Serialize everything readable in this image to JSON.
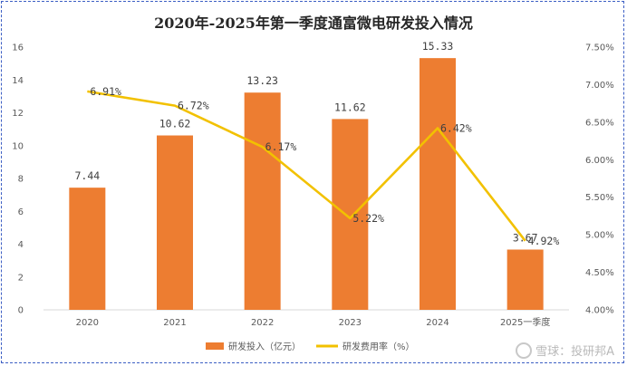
{
  "chart_data": {
    "type": "bar",
    "title": "2020年-2025年第一季度通富微电研发投入情况",
    "categories": [
      "2020",
      "2021",
      "2022",
      "2023",
      "2024",
      "2025一季度"
    ],
    "series": [
      {
        "name": "研发投入（亿元）",
        "type": "bar",
        "axis": "left",
        "color": "#ed7d31",
        "values": [
          7.44,
          10.62,
          13.23,
          11.62,
          15.33,
          3.67
        ],
        "labels": [
          "7.44",
          "10.62",
          "13.23",
          "11.62",
          "15.33",
          "3.67"
        ]
      },
      {
        "name": "研发费用率（%）",
        "type": "line",
        "axis": "right",
        "color": "#f2c100",
        "values": [
          6.91,
          6.72,
          6.17,
          5.22,
          6.42,
          4.92
        ],
        "labels": [
          "6.91%",
          "6.72%",
          "6.17%",
          "5.22%",
          "6.42%",
          "4.92%"
        ]
      }
    ],
    "y_left": {
      "ylim": [
        0,
        16
      ],
      "ticks": [
        "0",
        "2",
        "4",
        "6",
        "8",
        "10",
        "12",
        "14",
        "16"
      ]
    },
    "y_right": {
      "ylim": [
        4.0,
        7.5
      ],
      "ticks": [
        "4.00%",
        "4.50%",
        "5.00%",
        "5.50%",
        "6.00%",
        "6.50%",
        "7.00%",
        "7.50%"
      ]
    },
    "grid": false,
    "legend_position": "bottom"
  },
  "watermark": {
    "text": "雪球：投研邦A"
  }
}
